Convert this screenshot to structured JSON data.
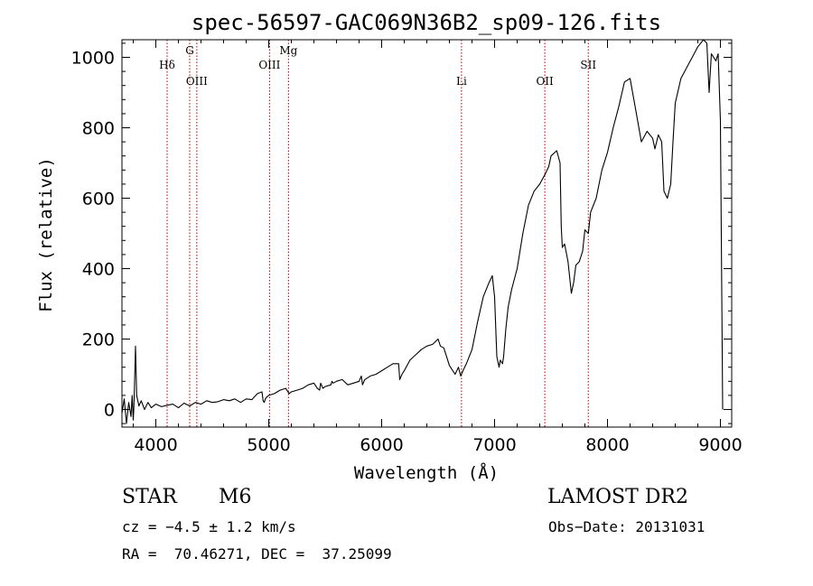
{
  "chart_data": {
    "type": "line",
    "title": "spec-56597-GAC069N36B2_sp09-126.fits",
    "xlabel": "Wavelength (Å)",
    "ylabel": "Flux (relative)",
    "xlim": [
      3700,
      9100
    ],
    "ylim": [
      -50,
      1050
    ],
    "xticks": [
      4000,
      5000,
      6000,
      7000,
      8000,
      9000
    ],
    "yticks": [
      0,
      200,
      400,
      600,
      800,
      1000
    ],
    "series": [
      {
        "x": [
          3700,
          3720,
          3740,
          3760,
          3780,
          3790,
          3800,
          3805,
          3810,
          3820,
          3830,
          3850,
          3870,
          3900,
          3930,
          3960,
          4000,
          4050,
          4100,
          4150,
          4200,
          4250,
          4300,
          4350,
          4400,
          4450,
          4500,
          4550,
          4600,
          4650,
          4700,
          4750,
          4800,
          4850,
          4900,
          4940,
          4950,
          4960,
          4970,
          4980,
          5000,
          5050,
          5100,
          5150,
          5180,
          5200,
          5250,
          5300,
          5350,
          5400,
          5430,
          5450,
          5460,
          5480,
          5500,
          5550,
          5560,
          5570,
          5600,
          5650,
          5700,
          5750,
          5800,
          5820,
          5830,
          5850,
          5900,
          5950,
          6000,
          6050,
          6100,
          6150,
          6160,
          6180,
          6200,
          6250,
          6300,
          6350,
          6400,
          6450,
          6500,
          6520,
          6550,
          6600,
          6650,
          6680,
          6700,
          6720,
          6750,
          6800,
          6850,
          6900,
          6950,
          6980,
          7000,
          7020,
          7040,
          7050,
          7070,
          7080,
          7100,
          7120,
          7150,
          7200,
          7250,
          7300,
          7350,
          7400,
          7450,
          7480,
          7500,
          7550,
          7580,
          7590,
          7600,
          7620,
          7650,
          7680,
          7700,
          7720,
          7750,
          7780,
          7800,
          7830,
          7850,
          7900,
          7950,
          8000,
          8050,
          8100,
          8150,
          8200,
          8250,
          8300,
          8350,
          8400,
          8420,
          8450,
          8480,
          8500,
          8530,
          8560,
          8580,
          8600,
          8650,
          8700,
          8750,
          8800,
          8850,
          8880,
          8900,
          8920,
          8940,
          8960,
          8980,
          9000,
          9020
        ],
        "y": [
          -10,
          30,
          -40,
          20,
          -20,
          40,
          -30,
          0,
          60,
          180,
          40,
          10,
          25,
          0,
          20,
          5,
          15,
          8,
          12,
          15,
          5,
          18,
          10,
          20,
          15,
          25,
          20,
          22,
          28,
          25,
          30,
          20,
          30,
          28,
          45,
          50,
          25,
          20,
          30,
          35,
          40,
          45,
          55,
          60,
          45,
          50,
          55,
          60,
          70,
          75,
          60,
          55,
          75,
          60,
          65,
          70,
          80,
          75,
          80,
          85,
          70,
          75,
          80,
          95,
          70,
          85,
          95,
          100,
          110,
          120,
          130,
          130,
          85,
          100,
          110,
          140,
          155,
          170,
          180,
          185,
          200,
          180,
          175,
          125,
          100,
          120,
          95,
          110,
          130,
          170,
          250,
          320,
          360,
          380,
          320,
          150,
          120,
          140,
          130,
          150,
          230,
          290,
          340,
          400,
          500,
          580,
          620,
          640,
          670,
          690,
          720,
          735,
          700,
          520,
          460,
          470,
          420,
          330,
          360,
          410,
          420,
          450,
          510,
          500,
          560,
          600,
          680,
          730,
          800,
          860,
          930,
          940,
          850,
          760,
          790,
          770,
          740,
          780,
          760,
          620,
          600,
          640,
          760,
          870,
          940,
          970,
          1000,
          1030,
          1050,
          1040,
          900,
          1010,
          1000,
          990,
          1010,
          820,
          0
        ],
        "color": "#000000"
      }
    ],
    "emission_lines": [
      {
        "label": "Hδ",
        "x": 4100,
        "color": "#b00000",
        "label_row": 0
      },
      {
        "label": "G",
        "x": 4300,
        "color": "#b00000",
        "label_row": 2
      },
      {
        "label": "OIII",
        "x": 4363,
        "color": "#b00000",
        "label_row": 1
      },
      {
        "label": "OIII",
        "x": 5007,
        "color": "#b00000",
        "label_row": 0
      },
      {
        "label": "Mg",
        "x": 5175,
        "color": "#b00000",
        "label_row": 2
      },
      {
        "label": "Li",
        "x": 6707,
        "color": "#b00000",
        "label_row": 1
      },
      {
        "label": "OII",
        "x": 7445,
        "color": "#b00000",
        "label_row": 1
      },
      {
        "label": "SII",
        "x": 7830,
        "color": "#b00000",
        "label_row": 0
      }
    ]
  },
  "info": {
    "class": "STAR",
    "subclass": "M6",
    "survey": "LAMOST DR2",
    "cz": "cz = −4.5 ± 1.2 km/s",
    "obs_date": "Obs−Date: 20131031",
    "radec": "RA =  70.46271, DEC =  37.25099"
  }
}
